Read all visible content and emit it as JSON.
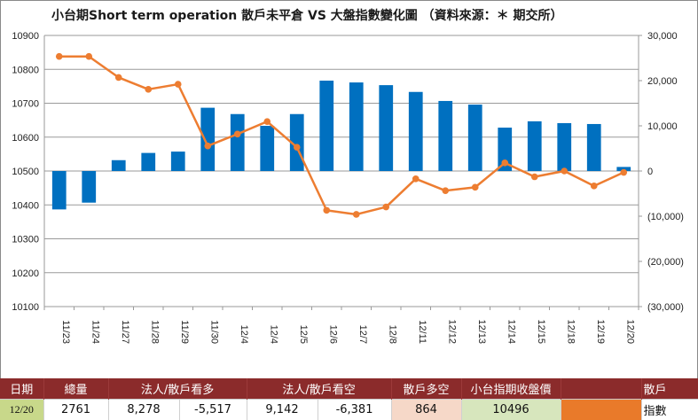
{
  "chart_data": {
    "type": "bar+line",
    "title": "小台期Short term operation  散戶未平倉  VS 大盤指數變化圖   （資料來源：＊ 期交所）",
    "categories": [
      "11/23",
      "11/24",
      "11/27",
      "11/28",
      "11/29",
      "11/30",
      "12/4",
      "12/4",
      "12/5",
      "12/6",
      "12/7",
      "12/8",
      "12/11",
      "12/12",
      "12/13",
      "12/14",
      "12/15",
      "12/18",
      "12/19",
      "12/20"
    ],
    "series": [
      {
        "name": "散戶",
        "type": "bar",
        "axis": "right",
        "color": "#0070c0",
        "values": [
          -8500,
          -7000,
          2400,
          4000,
          4300,
          14000,
          12600,
          10000,
          12600,
          20000,
          19600,
          19000,
          17500,
          15500,
          14700,
          9600,
          11000,
          10600,
          10400,
          900
        ]
      },
      {
        "name": "指數",
        "type": "line",
        "axis": "left",
        "color": "#ed7d31",
        "values": [
          10838,
          10838,
          10776,
          10741,
          10756,
          10574,
          10609,
          10646,
          10570,
          10384,
          10372,
          10394,
          10477,
          10442,
          10452,
          10524,
          10483,
          10500,
          10456,
          10496
        ]
      }
    ],
    "left_axis": {
      "ylim": [
        10100,
        10900
      ],
      "ticks": [
        "10100",
        "10200",
        "10300",
        "10400",
        "10500",
        "10600",
        "10700",
        "10800",
        "10900"
      ]
    },
    "right_axis": {
      "ylim": [
        -30000,
        30000
      ],
      "ticks": [
        "(30,000)",
        "(20,000)",
        "(10,000)",
        "0",
        "10,000",
        "20,000",
        "30,000"
      ],
      "negative_color": "#c00000"
    },
    "grid": "horizontal",
    "legend": "bottom-right"
  },
  "table": {
    "headers": [
      "日期",
      "總量",
      "法人/散戶看多",
      "法人/散戶看空",
      "散戶多空",
      "小台指期收盤價"
    ],
    "values": {
      "date": "12/20",
      "total": "2761",
      "long_inst": "8,278",
      "long_retail": "-5,517",
      "short_inst": "9,142",
      "short_retail": "-6,381",
      "retail_net": "864",
      "close": "10496"
    }
  },
  "legend": {
    "bar_label": "散戶",
    "line_label": "指數"
  }
}
